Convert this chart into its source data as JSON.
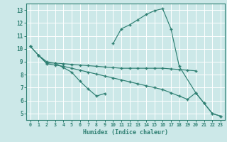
{
  "xlabel": "Humidex (Indice chaleur)",
  "bg_color": "#cce8e8",
  "grid_color": "#ffffff",
  "line_color": "#2e7f72",
  "xlim": [
    -0.5,
    23.5
  ],
  "ylim": [
    4.5,
    13.5
  ],
  "yticks": [
    5,
    6,
    7,
    8,
    9,
    10,
    11,
    12,
    13
  ],
  "xticks": [
    0,
    1,
    2,
    3,
    4,
    5,
    6,
    7,
    8,
    9,
    10,
    11,
    12,
    13,
    14,
    15,
    16,
    17,
    18,
    19,
    20,
    21,
    22,
    23
  ],
  "line1_x": [
    0,
    1,
    2,
    3,
    4,
    5,
    6,
    7,
    8,
    9,
    10,
    11,
    12,
    13,
    14,
    15,
    16,
    17,
    18,
    19,
    20
  ],
  "line1_y": [
    10.2,
    9.5,
    9.0,
    8.9,
    8.85,
    8.8,
    8.75,
    8.7,
    8.65,
    8.6,
    8.55,
    8.5,
    8.5,
    8.5,
    8.5,
    8.5,
    8.5,
    8.45,
    8.4,
    8.35,
    8.3
  ],
  "line2_x": [
    0,
    1,
    2,
    3,
    4,
    5,
    6,
    7,
    8,
    9,
    10,
    11,
    12,
    13,
    14,
    15,
    16,
    17,
    18,
    19,
    20,
    21,
    22,
    23
  ],
  "line2_y": [
    10.2,
    9.5,
    8.85,
    8.75,
    8.65,
    8.5,
    8.35,
    8.2,
    8.05,
    7.9,
    7.75,
    7.6,
    7.45,
    7.3,
    7.15,
    7.0,
    6.85,
    6.6,
    6.35,
    6.1,
    6.6,
    5.8,
    5.0,
    4.8
  ],
  "line3_x": [
    1,
    2,
    3,
    4,
    5,
    6,
    7,
    8,
    9
  ],
  "line3_y": [
    9.5,
    8.9,
    8.9,
    8.55,
    8.2,
    7.5,
    6.9,
    6.35,
    6.55
  ],
  "line4_x": [
    10,
    11,
    12,
    13,
    14,
    15,
    16,
    17,
    18,
    20,
    21,
    22,
    23
  ],
  "line4_y": [
    10.4,
    11.55,
    11.85,
    12.25,
    12.65,
    12.95,
    13.1,
    11.55,
    8.65,
    6.6,
    5.8,
    5.0,
    4.8
  ]
}
